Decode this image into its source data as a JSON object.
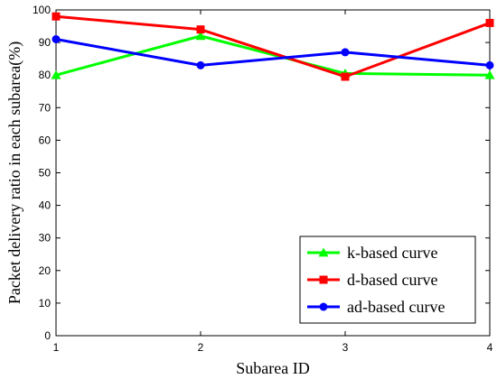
{
  "chart_data": {
    "type": "line",
    "title": "",
    "xlabel": "Subarea ID",
    "ylabel": "Packet delivery ratio in each subarea(%)",
    "x": [
      1,
      2,
      3,
      4
    ],
    "xticks": [
      "1",
      "2",
      "3",
      "4"
    ],
    "xlim": [
      1,
      4
    ],
    "ylim": [
      0,
      100
    ],
    "yticks": [
      "0",
      "10",
      "20",
      "30",
      "40",
      "50",
      "60",
      "70",
      "80",
      "90",
      "100"
    ],
    "grid": false,
    "legend_position": "bottom-right",
    "series": [
      {
        "name": "k-based curve",
        "values": [
          80,
          92,
          80.5,
          80
        ],
        "color": "#00ff00",
        "marker": "triangle"
      },
      {
        "name": "d-based curve",
        "values": [
          98,
          94,
          79.5,
          96
        ],
        "color": "#ff0000",
        "marker": "square"
      },
      {
        "name": "ad-based curve",
        "values": [
          91,
          83,
          87,
          83
        ],
        "color": "#0000ff",
        "marker": "circle"
      }
    ]
  }
}
